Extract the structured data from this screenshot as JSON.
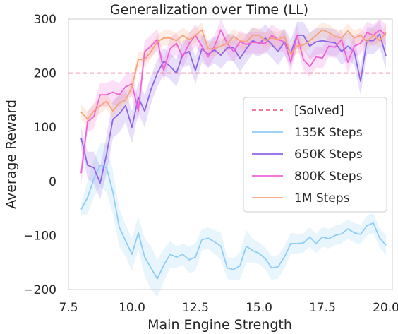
{
  "chart_data": {
    "type": "line",
    "title": "Generalization over Time (LL)",
    "xlabel": "Main Engine Strength",
    "ylabel": "Average Reward",
    "xlim": [
      7.5,
      20.25
    ],
    "ylim": [
      -200,
      300
    ],
    "xticks": [
      "7.5",
      "10.0",
      "12.5",
      "15.0",
      "17.5",
      "20.0"
    ],
    "yticks": [
      "−200",
      "−100",
      "0",
      "100",
      "200",
      "300"
    ],
    "grid": false,
    "legend_position": "center-right",
    "reference_line": {
      "name": "[Solved]",
      "y": 200,
      "style": "dashed",
      "color": "#f06a8a"
    },
    "x": [
      8.0,
      8.25,
      8.5,
      8.75,
      9.0,
      9.25,
      9.5,
      9.75,
      10.0,
      10.25,
      10.5,
      10.75,
      11.0,
      11.25,
      11.5,
      11.75,
      12.0,
      12.25,
      12.5,
      12.75,
      13.0,
      13.25,
      13.5,
      13.75,
      14.0,
      14.25,
      14.5,
      14.75,
      15.0,
      15.25,
      15.5,
      15.75,
      16.0,
      16.25,
      16.5,
      16.75,
      17.0,
      17.25,
      17.5,
      17.75,
      18.0,
      18.25,
      18.5,
      18.75,
      19.0,
      19.25,
      19.5,
      19.75,
      20.0
    ],
    "series": [
      {
        "name": "135K Steps",
        "color": "#8fcdf5",
        "values": [
          -52,
          -30,
          5,
          30,
          25,
          -20,
          -85,
          -110,
          -135,
          -95,
          -140,
          -160,
          -180,
          -155,
          -135,
          -140,
          -135,
          -145,
          -140,
          -108,
          -105,
          -112,
          -120,
          -160,
          -163,
          -156,
          -120,
          -128,
          -133,
          -143,
          -160,
          -158,
          -140,
          -115,
          -115,
          -114,
          -103,
          -115,
          -103,
          -106,
          -100,
          -97,
          -88,
          -95,
          -98,
          -82,
          -77,
          -105,
          -118
        ],
        "band": [
          12,
          30,
          35,
          40,
          45,
          40,
          35,
          30,
          30,
          30,
          35,
          40,
          35,
          30,
          25,
          20,
          20,
          25,
          25,
          20,
          20,
          22,
          25,
          20,
          20,
          25,
          30,
          22,
          20,
          20,
          22,
          22,
          20,
          20,
          18,
          18,
          18,
          18,
          18,
          18,
          18,
          18,
          18,
          18,
          18,
          18,
          18,
          18,
          18
        ]
      },
      {
        "name": "650K Steps",
        "color": "#8e64e8",
        "values": [
          80,
          30,
          25,
          -3,
          50,
          115,
          125,
          140,
          100,
          155,
          130,
          170,
          200,
          222,
          213,
          200,
          235,
          240,
          205,
          245,
          235,
          243,
          233,
          247,
          247,
          227,
          245,
          260,
          255,
          265,
          253,
          240,
          258,
          237,
          270,
          270,
          250,
          258,
          260,
          258,
          256,
          240,
          250,
          240,
          185,
          260,
          260,
          272,
          232
        ],
        "band": [
          20,
          25,
          30,
          30,
          35,
          35,
          35,
          30,
          30,
          30,
          30,
          25,
          25,
          25,
          25,
          25,
          25,
          25,
          25,
          25,
          25,
          25,
          25,
          25,
          25,
          25,
          25,
          25,
          25,
          25,
          25,
          25,
          25,
          25,
          25,
          25,
          25,
          25,
          25,
          25,
          25,
          25,
          25,
          25,
          25,
          25,
          25,
          25,
          25
        ]
      },
      {
        "name": "800K Steps",
        "color": "#f062d6",
        "values": [
          15,
          110,
          120,
          160,
          160,
          165,
          160,
          175,
          180,
          130,
          240,
          250,
          262,
          205,
          245,
          255,
          230,
          255,
          270,
          250,
          230,
          250,
          280,
          255,
          240,
          258,
          253,
          257,
          256,
          255,
          270,
          262,
          258,
          220,
          270,
          225,
          212,
          230,
          228,
          250,
          248,
          262,
          220,
          250,
          255,
          275,
          270,
          280,
          270
        ],
        "band": [
          20,
          20,
          22,
          22,
          22,
          22,
          22,
          22,
          22,
          22,
          20,
          20,
          20,
          20,
          20,
          20,
          20,
          20,
          20,
          20,
          20,
          20,
          20,
          20,
          20,
          20,
          20,
          20,
          20,
          20,
          20,
          20,
          20,
          20,
          20,
          20,
          20,
          20,
          20,
          20,
          20,
          20,
          20,
          20,
          20,
          20,
          20,
          20,
          20
        ]
      },
      {
        "name": "1M Steps",
        "color": "#f7a37a",
        "values": [
          128,
          115,
          130,
          140,
          148,
          130,
          145,
          150,
          175,
          225,
          225,
          240,
          258,
          265,
          265,
          260,
          270,
          262,
          270,
          280,
          245,
          245,
          250,
          255,
          268,
          260,
          258,
          270,
          270,
          260,
          265,
          262,
          268,
          235,
          250,
          252,
          260,
          270,
          280,
          275,
          268,
          265,
          278,
          265,
          270,
          258,
          270,
          260,
          275
        ],
        "band": [
          14,
          14,
          14,
          14,
          14,
          14,
          14,
          14,
          14,
          14,
          14,
          14,
          14,
          14,
          14,
          14,
          14,
          14,
          14,
          14,
          14,
          14,
          14,
          14,
          14,
          14,
          14,
          14,
          14,
          14,
          14,
          14,
          14,
          14,
          14,
          14,
          14,
          14,
          14,
          14,
          14,
          14,
          14,
          14,
          14,
          14,
          14,
          14,
          14
        ]
      }
    ]
  }
}
